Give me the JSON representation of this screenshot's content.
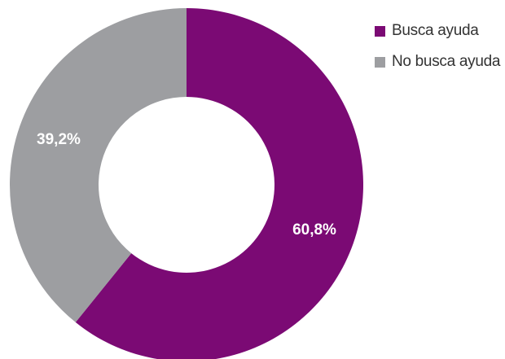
{
  "chart_data": {
    "type": "pie",
    "variant": "donut",
    "title": "",
    "categories": [
      "Busca ayuda",
      "No busca ayuda"
    ],
    "values": [
      60.8,
      39.2
    ],
    "value_labels": [
      "60,8%",
      "39,2%"
    ],
    "colors": [
      "#7b0a74",
      "#9d9ea1"
    ],
    "start": "12 o'clock",
    "direction": "clockwise",
    "legend_position": "top-right"
  }
}
